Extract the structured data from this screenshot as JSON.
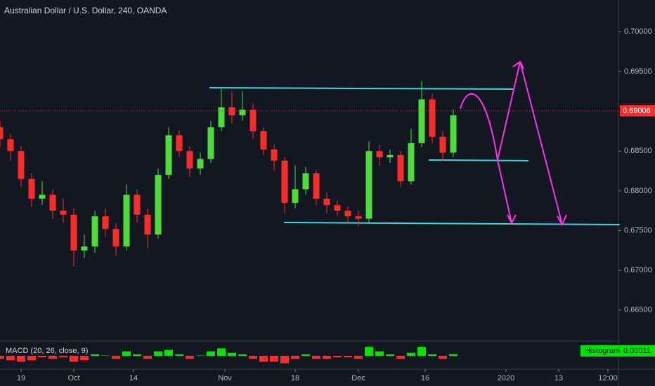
{
  "chart_data": {
    "type": "candlestick",
    "title": "Australian Dollar / U.S. Dollar, 240, OANDA",
    "x": [
      0,
      3,
      6,
      9,
      12,
      15,
      18,
      21,
      24,
      27,
      30,
      33,
      36,
      39,
      42,
      45,
      48,
      51,
      54,
      57,
      60,
      63,
      66,
      69,
      72,
      75,
      78,
      81,
      84,
      87,
      90,
      93,
      96,
      99,
      102,
      105,
      108,
      111,
      114,
      117,
      120,
      123,
      126,
      129
    ],
    "open": [
      0.688,
      0.6865,
      0.685,
      0.6815,
      0.679,
      0.6795,
      0.6775,
      0.677,
      0.6725,
      0.673,
      0.6768,
      0.6752,
      0.673,
      0.6795,
      0.677,
      0.6745,
      0.682,
      0.687,
      0.685,
      0.6828,
      0.684,
      0.688,
      0.6905,
      0.6895,
      0.6902,
      0.6875,
      0.6852,
      0.6838,
      0.6785,
      0.6802,
      0.6822,
      0.679,
      0.6782,
      0.6775,
      0.6768,
      0.6765,
      0.685,
      0.6842,
      0.6845,
      0.6812,
      0.686,
      0.6915,
      0.6868,
      0.6848
    ],
    "high": [
      0.6888,
      0.6872,
      0.6856,
      0.6822,
      0.6812,
      0.6802,
      0.679,
      0.6778,
      0.6745,
      0.6775,
      0.6778,
      0.676,
      0.6808,
      0.6802,
      0.6778,
      0.6828,
      0.688,
      0.6876,
      0.6856,
      0.6848,
      0.6888,
      0.6928,
      0.6925,
      0.6925,
      0.691,
      0.688,
      0.6858,
      0.6842,
      0.6832,
      0.683,
      0.6826,
      0.6798,
      0.6788,
      0.678,
      0.6775,
      0.6862,
      0.6858,
      0.6852,
      0.685,
      0.6878,
      0.6938,
      0.6922,
      0.6875,
      0.6902
    ],
    "low": [
      0.6855,
      0.6838,
      0.6805,
      0.678,
      0.6782,
      0.6765,
      0.676,
      0.6705,
      0.6715,
      0.6722,
      0.6742,
      0.6718,
      0.6725,
      0.676,
      0.6728,
      0.674,
      0.6815,
      0.6842,
      0.6818,
      0.682,
      0.6835,
      0.6875,
      0.6885,
      0.6888,
      0.6865,
      0.6845,
      0.6825,
      0.6772,
      0.6778,
      0.6795,
      0.6782,
      0.6772,
      0.6768,
      0.676,
      0.6755,
      0.676,
      0.6832,
      0.6835,
      0.6805,
      0.6808,
      0.6855,
      0.686,
      0.6838,
      0.6842
    ],
    "close": [
      0.6865,
      0.685,
      0.6815,
      0.679,
      0.6795,
      0.6775,
      0.677,
      0.6725,
      0.673,
      0.6768,
      0.6752,
      0.673,
      0.6795,
      0.677,
      0.6745,
      0.682,
      0.687,
      0.685,
      0.6828,
      0.684,
      0.688,
      0.6905,
      0.6895,
      0.6902,
      0.6875,
      0.6852,
      0.6838,
      0.6785,
      0.6802,
      0.6822,
      0.679,
      0.6782,
      0.6775,
      0.6768,
      0.6765,
      0.685,
      0.6842,
      0.6845,
      0.6812,
      0.686,
      0.6915,
      0.6868,
      0.6848,
      0.6895
    ],
    "up_color": "#4cdd3a",
    "down_color": "#ff2a2a",
    "last_price": 0.69006,
    "ylim": [
      0.6611,
      0.704
    ],
    "yticks": [
      {
        "value": 0.7,
        "label": "0.70000"
      },
      {
        "value": 0.695,
        "label": "0.69500"
      },
      {
        "value": 0.685,
        "label": "0.68500"
      },
      {
        "value": 0.68,
        "label": "0.68000"
      },
      {
        "value": 0.675,
        "label": "0.67500"
      },
      {
        "value": 0.67,
        "label": "0.67000"
      },
      {
        "value": 0.665,
        "label": "0.66500"
      }
    ],
    "xlim": [
      0,
      176
    ],
    "xticks": [
      {
        "value": 6,
        "label": "19"
      },
      {
        "value": 21,
        "label": "Oct"
      },
      {
        "value": 38,
        "label": "14"
      },
      {
        "value": 64,
        "label": "Nov"
      },
      {
        "value": 84,
        "label": "18"
      },
      {
        "value": 102,
        "label": "Dec"
      },
      {
        "value": 121,
        "label": "16"
      },
      {
        "value": 144,
        "label": "2020"
      },
      {
        "value": 159,
        "label": "13"
      },
      {
        "value": 173,
        "label": "12:00"
      }
    ],
    "macd": {
      "label": "MACD (20, 26, close, 9)",
      "histogram_label": "Histogram",
      "histogram_value": 0.00011,
      "ylim": [
        -0.0008,
        0.0008
      ],
      "values": [
        -0.0002,
        -0.0003,
        -0.0004,
        -0.0003,
        -0.0001,
        -0.0002,
        -0.0001,
        -0.0004,
        -0.0003,
        0.0001,
        2e-05,
        -0.0002,
        0.0003,
        0.0001,
        -0.0002,
        0.0003,
        0.0004,
        0.0001,
        -0.0002,
        2e-05,
        0.0003,
        0.0005,
        0.0002,
        0.0001,
        -0.0002,
        -0.0004,
        -0.0004,
        -0.0005,
        -0.0002,
        0.0001,
        -0.0002,
        -0.0002,
        -0.0001,
        -0.0001,
        -0.0002,
        0.0006,
        0.0003,
        0.0001,
        -0.0002,
        0.0002,
        0.0006,
        0.0001,
        -0.0002,
        0.00011
      ]
    }
  }
}
